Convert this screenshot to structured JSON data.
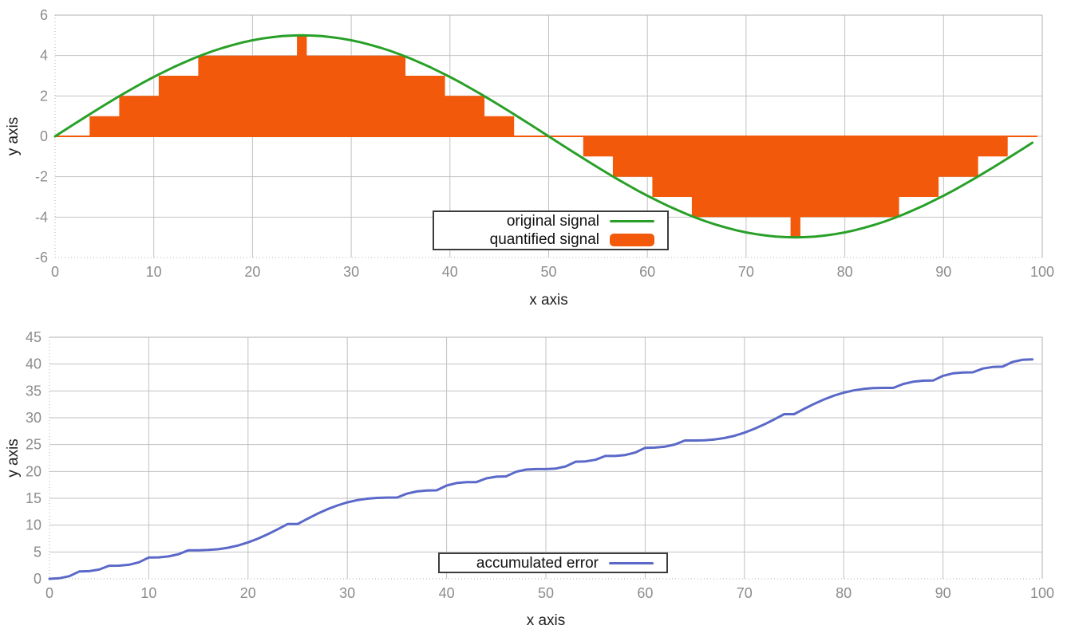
{
  "figure": {
    "background": "#ffffff",
    "legend_border": "#3c3c3c",
    "legend_background": "#ffffff"
  },
  "chart_data": [
    {
      "type": "bar",
      "subtype": "line-and-boxes",
      "title": "",
      "xlabel": "x axis",
      "ylabel": "y axis",
      "xlim": [
        0,
        100
      ],
      "ylim": [
        -6,
        6
      ],
      "xticks": [
        0,
        10,
        20,
        30,
        40,
        50,
        60,
        70,
        80,
        90,
        100
      ],
      "yticks": [
        -6,
        -4,
        -2,
        0,
        2,
        4,
        6
      ],
      "grid": true,
      "legend_position": "bottom-center-inside",
      "x_start": 0,
      "x_step": 1,
      "colors": {
        "grid": "#c2c2c2",
        "border": "#b0b0b0",
        "tick_label": "#8c8c8c",
        "axis_label": "#1f1f1f"
      },
      "series": [
        {
          "name": "original signal",
          "type": "line",
          "color": "#28a028",
          "line_width": 3,
          "values": [
            0,
            0.314,
            0.627,
            0.937,
            1.243,
            1.545,
            1.841,
            2.129,
            2.409,
            2.679,
            2.939,
            3.187,
            3.423,
            3.645,
            3.853,
            4.045,
            4.222,
            4.382,
            4.524,
            4.649,
            4.755,
            4.843,
            4.911,
            4.961,
            4.99,
            5,
            4.99,
            4.961,
            4.911,
            4.843,
            4.755,
            4.649,
            4.524,
            4.382,
            4.222,
            4.045,
            3.853,
            3.645,
            3.423,
            3.187,
            2.939,
            2.679,
            2.409,
            2.129,
            1.841,
            1.545,
            1.243,
            0.937,
            0.627,
            0.314,
            0,
            -0.314,
            -0.627,
            -0.937,
            -1.243,
            -1.545,
            -1.841,
            -2.129,
            -2.409,
            -2.679,
            -2.939,
            -3.187,
            -3.423,
            -3.645,
            -3.853,
            -4.045,
            -4.222,
            -4.382,
            -4.524,
            -4.649,
            -4.755,
            -4.843,
            -4.911,
            -4.961,
            -4.99,
            -5,
            -4.99,
            -4.961,
            -4.911,
            -4.843,
            -4.755,
            -4.649,
            -4.524,
            -4.382,
            -4.222,
            -4.045,
            -3.853,
            -3.645,
            -3.423,
            -3.187,
            -2.939,
            -2.679,
            -2.409,
            -2.129,
            -1.841,
            -1.545,
            -1.243,
            -0.937,
            -0.627,
            -0.314
          ]
        },
        {
          "name": "quantified signal",
          "type": "boxes",
          "color": "#f2590a",
          "box_width": 1,
          "baseline_width": 2,
          "values": [
            0,
            0,
            0,
            0,
            1,
            1,
            1,
            2,
            2,
            2,
            2,
            3,
            3,
            3,
            3,
            4,
            4,
            4,
            4,
            4,
            4,
            4,
            4,
            4,
            4,
            5,
            4,
            4,
            4,
            4,
            4,
            4,
            4,
            4,
            4,
            4,
            3,
            3,
            3,
            3,
            2,
            2,
            2,
            2,
            1,
            1,
            1,
            0,
            0,
            0,
            0,
            0,
            0,
            0,
            -1,
            -1,
            -1,
            -2,
            -2,
            -2,
            -2,
            -3,
            -3,
            -3,
            -3,
            -4,
            -4,
            -4,
            -4,
            -4,
            -4,
            -4,
            -4,
            -4,
            -4,
            -5,
            -4,
            -4,
            -4,
            -4,
            -4,
            -4,
            -4,
            -4,
            -4,
            -4,
            -3,
            -3,
            -3,
            -3,
            -2,
            -2,
            -2,
            -2,
            -1,
            -1,
            -1,
            0,
            0,
            0
          ]
        }
      ]
    },
    {
      "type": "line",
      "title": "",
      "xlabel": "x axis",
      "ylabel": "y axis",
      "xlim": [
        0,
        100
      ],
      "ylim": [
        0,
        45
      ],
      "xticks": [
        0,
        10,
        20,
        30,
        40,
        50,
        60,
        70,
        80,
        90,
        100
      ],
      "yticks": [
        0,
        5,
        10,
        15,
        20,
        25,
        30,
        35,
        40,
        45
      ],
      "grid": true,
      "legend_position": "bottom-center-inside",
      "x_start": 0,
      "x_step": 1,
      "colors": {
        "grid": "#c2c2c2",
        "border": "#b0b0b0",
        "tick_label": "#8c8c8c",
        "axis_label": "#1f1f1f"
      },
      "series": [
        {
          "name": "accumulated error",
          "type": "line",
          "color": "#5a69c8",
          "line_width": 3,
          "values": [
            0,
            0.1,
            0.49,
            1.37,
            1.43,
            1.73,
            2.43,
            2.45,
            2.62,
            3.08,
            3.96,
            3.99,
            4.17,
            4.59,
            5.32,
            5.32,
            5.37,
            5.51,
            5.79,
            6.21,
            6.78,
            7.49,
            8.32,
            9.24,
            10.22,
            10.22,
            11.2,
            12.13,
            12.96,
            13.67,
            14.24,
            14.66,
            14.93,
            15.08,
            15.13,
            15.13,
            15.86,
            16.27,
            16.45,
            16.49,
            17.37,
            17.83,
            18,
            18.01,
            18.72,
            19.02,
            19.08,
            19.95,
            20.35,
            20.44,
            20.44,
            20.54,
            20.94,
            21.81,
            21.87,
            22.17,
            22.88,
            22.89,
            23.06,
            23.52,
            24.4,
            24.44,
            24.62,
            25.03,
            25.76,
            25.76,
            25.81,
            25.96,
            26.23,
            26.65,
            27.22,
            27.93,
            28.76,
            29.69,
            30.67,
            30.67,
            31.65,
            32.57,
            33.4,
            34.11,
            34.68,
            35.1,
            35.38,
            35.52,
            35.57,
            35.57,
            36.3,
            36.72,
            36.9,
            36.93,
            37.81,
            38.27,
            38.44,
            38.46,
            39.16,
            39.46,
            39.52,
            40.4,
            40.79,
            40.89
          ]
        }
      ]
    }
  ]
}
